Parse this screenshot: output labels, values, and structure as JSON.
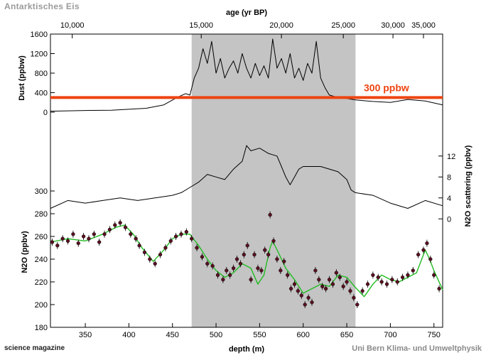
{
  "figure": {
    "header_left": "Antarktisches Eis",
    "footer_left": "science magazine",
    "footer_right": "Uni Bern Klima- und Umweltphysik"
  },
  "chart_data": {
    "type": "line",
    "top_axis": {
      "label": "age (yr BP)",
      "ticks": [
        {
          "label": "10,000",
          "depth": 335
        },
        {
          "label": "15,000",
          "depth": 483
        },
        {
          "label": "20,000",
          "depth": 575
        },
        {
          "label": "25,000",
          "depth": 646
        },
        {
          "label": "30,000",
          "depth": 703
        },
        {
          "label": "35,000",
          "depth": 738
        }
      ]
    },
    "x_axis": {
      "label": "depth (m)",
      "range": [
        310,
        760
      ],
      "ticks": [
        350,
        400,
        450,
        500,
        550,
        600,
        650,
        700,
        750
      ]
    },
    "highlight_band": {
      "depth_range": [
        472,
        660
      ],
      "color": "#c4c4c4"
    },
    "panels": [
      {
        "id": "dust",
        "ylabel": "Dust (ppbw)",
        "yrange": [
          0,
          1600
        ],
        "ticks": [
          0,
          400,
          800,
          1200,
          1600
        ],
        "threshold": {
          "value": 300,
          "label": "300 ppbw",
          "color": "#ee4411"
        },
        "series": {
          "name": "Dust",
          "color": "#000000",
          "points": [
            [
              310,
              20
            ],
            [
              350,
              35
            ],
            [
              380,
              40
            ],
            [
              420,
              80
            ],
            [
              440,
              150
            ],
            [
              455,
              300
            ],
            [
              465,
              380
            ],
            [
              470,
              350
            ],
            [
              475,
              700
            ],
            [
              480,
              900
            ],
            [
              485,
              1300
            ],
            [
              490,
              1000
            ],
            [
              495,
              1450
            ],
            [
              500,
              800
            ],
            [
              505,
              1100
            ],
            [
              510,
              700
            ],
            [
              515,
              900
            ],
            [
              520,
              1050
            ],
            [
              525,
              800
            ],
            [
              530,
              1200
            ],
            [
              535,
              900
            ],
            [
              540,
              700
            ],
            [
              545,
              1000
            ],
            [
              550,
              750
            ],
            [
              555,
              950
            ],
            [
              560,
              700
            ],
            [
              565,
              1500
            ],
            [
              570,
              900
            ],
            [
              575,
              1100
            ],
            [
              580,
              800
            ],
            [
              585,
              1200
            ],
            [
              590,
              700
            ],
            [
              595,
              900
            ],
            [
              600,
              650
            ],
            [
              605,
              1000
            ],
            [
              610,
              800
            ],
            [
              615,
              1450
            ],
            [
              620,
              700
            ],
            [
              625,
              500
            ],
            [
              630,
              350
            ],
            [
              640,
              300
            ],
            [
              650,
              280
            ],
            [
              660,
              250
            ],
            [
              680,
              220
            ],
            [
              700,
              200
            ],
            [
              720,
              260
            ],
            [
              740,
              230
            ],
            [
              760,
              150
            ]
          ]
        }
      },
      {
        "id": "n2o_scattering",
        "ylabel": "N2O scattering (ppbv)",
        "yrange": [
          -2,
          14
        ],
        "ticks": [
          0,
          4,
          8,
          12
        ],
        "series": {
          "name": "N2O scattering",
          "color": "#000000",
          "points": [
            [
              310,
              2
            ],
            [
              330,
              3.5
            ],
            [
              350,
              3
            ],
            [
              370,
              3.5
            ],
            [
              390,
              4
            ],
            [
              410,
              3.5
            ],
            [
              430,
              4
            ],
            [
              450,
              4.5
            ],
            [
              460,
              5
            ],
            [
              470,
              6
            ],
            [
              480,
              7
            ],
            [
              490,
              8.5
            ],
            [
              500,
              8
            ],
            [
              510,
              7.5
            ],
            [
              520,
              9.5
            ],
            [
              530,
              11
            ],
            [
              535,
              14
            ],
            [
              540,
              13
            ],
            [
              550,
              13.5
            ],
            [
              560,
              12.5
            ],
            [
              570,
              12
            ],
            [
              575,
              10
            ],
            [
              580,
              8
            ],
            [
              585,
              6.5
            ],
            [
              590,
              8
            ],
            [
              595,
              9.5
            ],
            [
              600,
              10
            ],
            [
              620,
              10
            ],
            [
              640,
              9
            ],
            [
              650,
              7.5
            ],
            [
              655,
              5.5
            ],
            [
              660,
              5
            ],
            [
              680,
              4.5
            ],
            [
              700,
              3
            ],
            [
              720,
              2
            ],
            [
              740,
              3.5
            ],
            [
              760,
              2.5
            ]
          ]
        }
      },
      {
        "id": "n2o",
        "ylabel": "N2O (ppbv)",
        "yrange": [
          180,
          300
        ],
        "ticks": [
          180,
          200,
          220,
          240,
          260,
          280,
          300
        ],
        "series": {
          "name": "N2O smoothed",
          "color": "#22bb22",
          "points": [
            [
              310,
              255
            ],
            [
              330,
              258
            ],
            [
              350,
              256
            ],
            [
              370,
              262
            ],
            [
              385,
              268
            ],
            [
              395,
              270
            ],
            [
              405,
              262
            ],
            [
              415,
              250
            ],
            [
              428,
              238
            ],
            [
              440,
              248
            ],
            [
              450,
              258
            ],
            [
              460,
              262
            ],
            [
              470,
              262
            ],
            [
              480,
              252
            ],
            [
              490,
              240
            ],
            [
              500,
              230
            ],
            [
              510,
              224
            ],
            [
              520,
              228
            ],
            [
              530,
              236
            ],
            [
              540,
              232
            ],
            [
              548,
              218
            ],
            [
              555,
              226
            ],
            [
              562,
              250
            ],
            [
              565,
              256
            ],
            [
              572,
              245
            ],
            [
              580,
              232
            ],
            [
              590,
              222
            ],
            [
              600,
              210
            ],
            [
              610,
              214
            ],
            [
              620,
              218
            ],
            [
              630,
              216
            ],
            [
              640,
              226
            ],
            [
              650,
              224
            ],
            [
              660,
              215
            ],
            [
              670,
              207
            ],
            [
              680,
              218
            ],
            [
              690,
              226
            ],
            [
              700,
              222
            ],
            [
              710,
              220
            ],
            [
              720,
              224
            ],
            [
              730,
              228
            ],
            [
              740,
              248
            ],
            [
              745,
              240
            ],
            [
              750,
              230
            ],
            [
              760,
              213
            ]
          ]
        },
        "samples": [
          [
            312,
            255
          ],
          [
            318,
            252
          ],
          [
            324,
            258
          ],
          [
            330,
            256
          ],
          [
            336,
            262
          ],
          [
            342,
            254
          ],
          [
            348,
            260
          ],
          [
            354,
            258
          ],
          [
            360,
            262
          ],
          [
            366,
            255
          ],
          [
            372,
            262
          ],
          [
            378,
            266
          ],
          [
            384,
            270
          ],
          [
            390,
            272
          ],
          [
            396,
            268
          ],
          [
            402,
            262
          ],
          [
            408,
            258
          ],
          [
            412,
            252
          ],
          [
            418,
            246
          ],
          [
            424,
            240
          ],
          [
            430,
            236
          ],
          [
            436,
            244
          ],
          [
            442,
            250
          ],
          [
            448,
            256
          ],
          [
            454,
            260
          ],
          [
            460,
            262
          ],
          [
            466,
            264
          ],
          [
            472,
            258
          ],
          [
            478,
            250
          ],
          [
            484,
            242
          ],
          [
            490,
            236
          ],
          [
            496,
            234
          ],
          [
            502,
            226
          ],
          [
            508,
            222
          ],
          [
            512,
            230
          ],
          [
            516,
            226
          ],
          [
            520,
            232
          ],
          [
            524,
            240
          ],
          [
            528,
            236
          ],
          [
            532,
            244
          ],
          [
            536,
            252
          ],
          [
            540,
            222
          ],
          [
            544,
            244
          ],
          [
            548,
            232
          ],
          [
            552,
            230
          ],
          [
            556,
            248
          ],
          [
            560,
            244
          ],
          [
            562,
            279
          ],
          [
            566,
            256
          ],
          [
            570,
            240
          ],
          [
            574,
            230
          ],
          [
            578,
            238
          ],
          [
            582,
            226
          ],
          [
            586,
            214
          ],
          [
            590,
            218
          ],
          [
            594,
            212
          ],
          [
            598,
            208
          ],
          [
            602,
            200
          ],
          [
            606,
            206
          ],
          [
            610,
            202
          ],
          [
            614,
            230
          ],
          [
            618,
            222
          ],
          [
            622,
            216
          ],
          [
            626,
            214
          ],
          [
            630,
            222
          ],
          [
            634,
            218
          ],
          [
            638,
            228
          ],
          [
            642,
            224
          ],
          [
            646,
            216
          ],
          [
            650,
            220
          ],
          [
            654,
            212
          ],
          [
            658,
            206
          ],
          [
            662,
            200
          ],
          [
            668,
            212
          ],
          [
            674,
            218
          ],
          [
            680,
            226
          ],
          [
            686,
            224
          ],
          [
            690,
            220
          ],
          [
            696,
            218
          ],
          [
            702,
            222
          ],
          [
            708,
            220
          ],
          [
            714,
            224
          ],
          [
            720,
            226
          ],
          [
            726,
            230
          ],
          [
            732,
            244
          ],
          [
            738,
            248
          ],
          [
            742,
            254
          ],
          [
            746,
            240
          ],
          [
            750,
            226
          ],
          [
            756,
            214
          ]
        ]
      }
    ]
  }
}
